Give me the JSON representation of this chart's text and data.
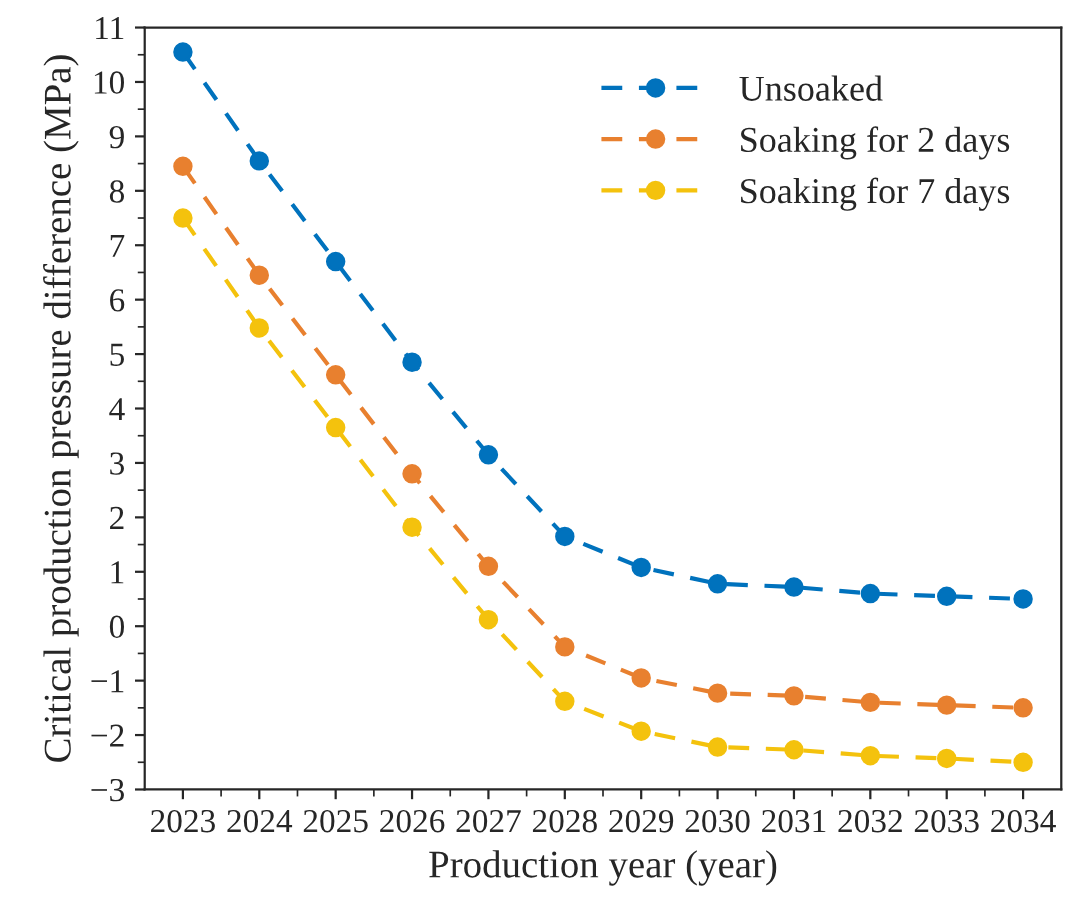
{
  "chart_data": {
    "type": "line",
    "xlabel": "Production year (year)",
    "ylabel": "Critical production pressure difference (MPa)",
    "categories": [
      "2023",
      "2024",
      "2025",
      "2026",
      "2027",
      "2028",
      "2029",
      "2030",
      "2031",
      "2032",
      "2033",
      "2034"
    ],
    "series": [
      {
        "name": "Unsoaked",
        "color": "#0072bd",
        "values": [
          10.55,
          8.55,
          6.7,
          4.85,
          3.15,
          1.65,
          1.08,
          0.78,
          0.72,
          0.6,
          0.55,
          0.5
        ]
      },
      {
        "name": "Soaking for 2 days",
        "color": "#e8802f",
        "values": [
          8.45,
          6.45,
          4.62,
          2.8,
          1.1,
          -0.38,
          -0.95,
          -1.23,
          -1.28,
          -1.4,
          -1.45,
          -1.5
        ]
      },
      {
        "name": "Soaking for 7 days",
        "color": "#f4c20d",
        "values": [
          7.5,
          5.48,
          3.65,
          1.82,
          0.12,
          -1.38,
          -1.93,
          -2.22,
          -2.27,
          -2.38,
          -2.43,
          -2.5
        ]
      }
    ],
    "ylim": [
      -3,
      11
    ],
    "yticks": [
      -3,
      -2,
      -1,
      0,
      1,
      2,
      3,
      4,
      5,
      6,
      7,
      8,
      9,
      10,
      11
    ],
    "marker": "circle",
    "line_style": "dashed",
    "legend": "top right",
    "grid": false
  }
}
